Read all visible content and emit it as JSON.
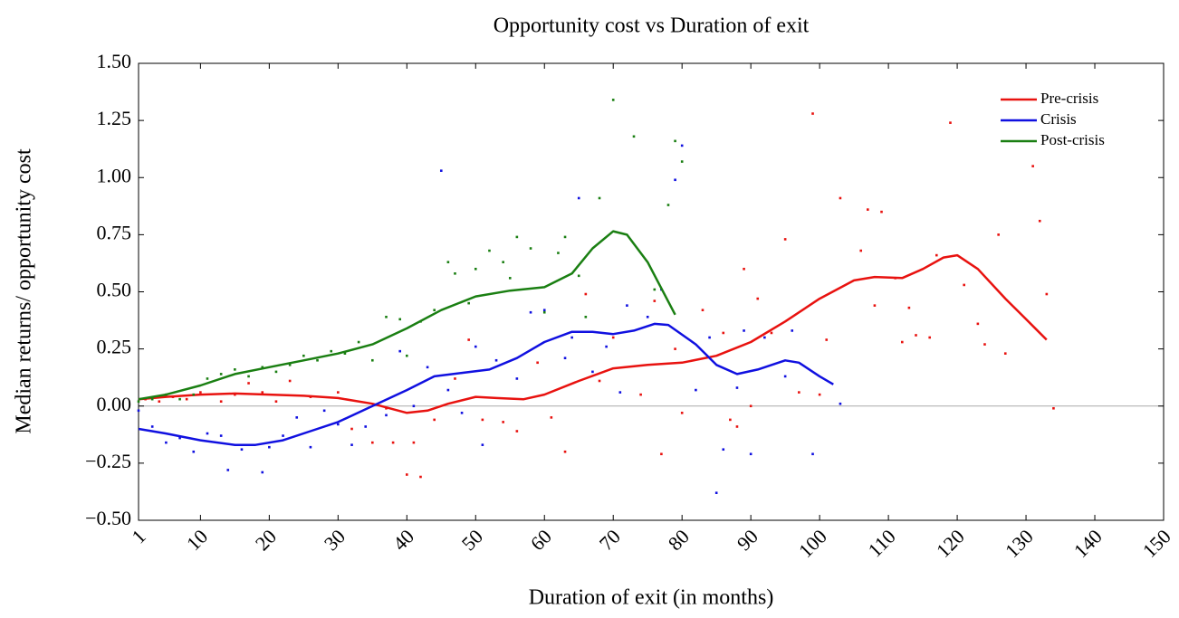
{
  "chart_data": {
    "type": "scatter",
    "title": "Opportunity cost vs Duration of exit",
    "x_label": "Duration of exit (in months)",
    "y_label": "Median returns/ opportunity cost",
    "xlim": [
      1,
      150
    ],
    "xticks": [
      1,
      10,
      20,
      30,
      40,
      50,
      60,
      70,
      80,
      90,
      100,
      110,
      120,
      130,
      140,
      150
    ],
    "ylim": [
      -0.5,
      1.5
    ],
    "yticks": [
      {
        "value": -0.5,
        "label": "−0.50"
      },
      {
        "value": -0.25,
        "label": "−0.25"
      },
      {
        "value": 0,
        "label": "0.00"
      },
      {
        "value": 0.25,
        "label": "0.25"
      },
      {
        "value": 0.5,
        "label": "0.50"
      },
      {
        "value": 0.75,
        "label": "0.75"
      },
      {
        "value": 1.0,
        "label": "1.00"
      },
      {
        "value": 1.25,
        "label": "1.25"
      },
      {
        "value": 1.5,
        "label": "1.50"
      }
    ],
    "zero_line": true,
    "legend": "upper right",
    "series": [
      {
        "name": "Pre-crisis",
        "color": "#e8120f",
        "x": [
          1,
          5,
          10,
          15,
          20,
          25,
          30,
          35,
          40,
          43,
          46,
          50,
          53,
          57,
          60,
          65,
          70,
          75,
          80,
          85,
          90,
          95,
          100,
          105,
          108,
          112,
          115,
          118,
          120,
          123,
          127,
          130,
          133
        ],
        "values": [
          0.03,
          0.04,
          0.05,
          0.055,
          0.05,
          0.045,
          0.035,
          0.01,
          -0.03,
          -0.02,
          0.01,
          0.04,
          0.035,
          0.03,
          0.05,
          0.11,
          0.165,
          0.18,
          0.19,
          0.22,
          0.28,
          0.37,
          0.47,
          0.55,
          0.565,
          0.56,
          0.6,
          0.65,
          0.66,
          0.6,
          0.47,
          0.38,
          0.29
        ],
        "points_x": [
          2,
          4,
          6,
          8,
          10,
          13,
          15,
          17,
          19,
          21,
          23,
          26,
          30,
          32,
          35,
          37,
          38,
          40,
          41,
          42,
          44,
          47,
          49,
          51,
          54,
          56,
          59,
          61,
          63,
          66,
          68,
          70,
          74,
          76,
          77,
          79,
          80,
          83,
          86,
          87,
          88,
          89,
          90,
          91,
          93,
          95,
          97,
          99,
          100,
          101,
          103,
          106,
          107,
          108,
          109,
          111,
          112,
          113,
          114,
          116,
          117,
          119,
          121,
          123,
          124,
          126,
          127,
          131,
          132,
          133,
          134
        ],
        "points_y": [
          0.03,
          0.02,
          0.04,
          0.03,
          0.06,
          0.02,
          0.05,
          0.1,
          0.06,
          0.02,
          0.11,
          0.04,
          0.06,
          -0.1,
          -0.16,
          -0.01,
          -0.16,
          -0.3,
          -0.16,
          -0.31,
          -0.06,
          0.12,
          0.29,
          -0.06,
          -0.07,
          -0.11,
          0.19,
          -0.05,
          -0.2,
          0.49,
          0.11,
          0.3,
          0.05,
          0.46,
          -0.21,
          0.25,
          -0.03,
          0.42,
          0.32,
          -0.06,
          -0.09,
          0.6,
          0.0,
          0.47,
          0.32,
          0.73,
          0.06,
          1.28,
          0.05,
          0.29,
          0.91,
          0.68,
          0.86,
          0.44,
          0.85,
          0.56,
          0.28,
          0.43,
          0.31,
          0.3,
          0.66,
          1.24,
          0.53,
          0.36,
          0.27,
          0.75,
          0.23,
          1.05,
          0.81,
          0.49,
          -0.01
        ]
      },
      {
        "name": "Crisis",
        "color": "#1010e0",
        "x": [
          1,
          5,
          10,
          15,
          18,
          22,
          26,
          30,
          35,
          40,
          44,
          48,
          52,
          56,
          60,
          64,
          67,
          70,
          73,
          76,
          78,
          82,
          85,
          88,
          91,
          95,
          97,
          100,
          102
        ],
        "values": [
          -0.1,
          -0.12,
          -0.15,
          -0.17,
          -0.17,
          -0.15,
          -0.11,
          -0.07,
          0.0,
          0.07,
          0.13,
          0.145,
          0.16,
          0.21,
          0.28,
          0.325,
          0.325,
          0.315,
          0.33,
          0.36,
          0.355,
          0.27,
          0.18,
          0.14,
          0.16,
          0.2,
          0.19,
          0.13,
          0.095
        ],
        "points_x": [
          1,
          3,
          5,
          7,
          9,
          11,
          13,
          14,
          16,
          19,
          20,
          22,
          24,
          26,
          28,
          30,
          32,
          34,
          37,
          39,
          41,
          43,
          45,
          46,
          48,
          50,
          51,
          53,
          56,
          58,
          60,
          63,
          64,
          65,
          67,
          69,
          71,
          72,
          75,
          77,
          79,
          80,
          82,
          84,
          85,
          86,
          88,
          89,
          90,
          92,
          95,
          96,
          99,
          103
        ],
        "points_y": [
          -0.02,
          -0.09,
          -0.16,
          -0.14,
          -0.2,
          -0.12,
          -0.13,
          -0.28,
          -0.19,
          -0.29,
          -0.18,
          -0.13,
          -0.05,
          -0.18,
          -0.02,
          -0.08,
          -0.17,
          -0.09,
          -0.04,
          0.24,
          0.0,
          0.17,
          1.03,
          0.07,
          -0.03,
          0.26,
          -0.17,
          0.2,
          0.12,
          0.41,
          0.42,
          0.21,
          0.3,
          0.91,
          0.15,
          0.26,
          0.06,
          0.44,
          0.39,
          0.51,
          0.99,
          1.14,
          0.07,
          0.3,
          -0.38,
          -0.19,
          0.08,
          0.33,
          -0.21,
          0.3,
          0.13,
          0.33,
          -0.21,
          0.01
        ]
      },
      {
        "name": "Post-crisis",
        "color": "#1a7f12",
        "x": [
          1,
          5,
          10,
          15,
          20,
          25,
          30,
          35,
          40,
          45,
          50,
          55,
          60,
          64,
          67,
          70,
          72,
          75,
          79
        ],
        "values": [
          0.03,
          0.05,
          0.09,
          0.14,
          0.17,
          0.2,
          0.23,
          0.27,
          0.34,
          0.42,
          0.48,
          0.505,
          0.52,
          0.58,
          0.69,
          0.765,
          0.75,
          0.63,
          0.4
        ],
        "points_x": [
          1,
          3,
          5,
          7,
          9,
          11,
          13,
          15,
          17,
          19,
          21,
          23,
          25,
          27,
          29,
          31,
          33,
          35,
          37,
          39,
          40,
          42,
          44,
          46,
          47,
          49,
          50,
          52,
          54,
          55,
          56,
          58,
          60,
          62,
          63,
          65,
          66,
          68,
          70,
          73,
          76,
          78,
          79,
          80
        ],
        "points_y": [
          0.02,
          0.03,
          0.05,
          0.03,
          0.05,
          0.12,
          0.14,
          0.16,
          0.13,
          0.17,
          0.15,
          0.18,
          0.22,
          0.2,
          0.24,
          0.23,
          0.28,
          0.2,
          0.39,
          0.38,
          0.22,
          0.37,
          0.42,
          0.63,
          0.58,
          0.45,
          0.6,
          0.68,
          0.63,
          0.56,
          0.74,
          0.69,
          0.41,
          0.67,
          0.74,
          0.57,
          0.39,
          0.91,
          1.34,
          1.18,
          0.51,
          0.88,
          1.16,
          1.07
        ]
      }
    ]
  }
}
